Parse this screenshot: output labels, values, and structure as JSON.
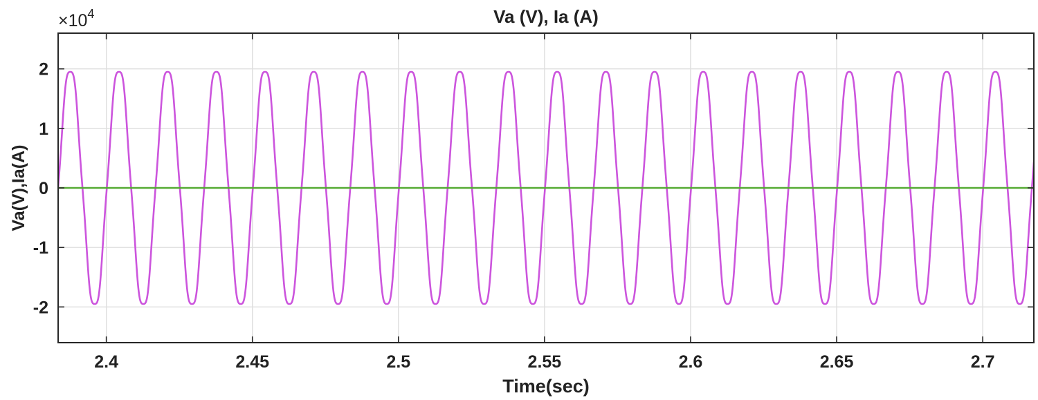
{
  "chart_data": {
    "type": "line",
    "title": "Va (V), Ia (A)",
    "xlabel": "Time(sec)",
    "ylabel": "Va(V),Ia(A)",
    "y_multiplier_base": "×10",
    "y_multiplier_exp": "4",
    "xlim": [
      2.3835,
      2.7175
    ],
    "ylim": [
      -2.6,
      2.6
    ],
    "grid": true,
    "x_ticks": [
      2.4,
      2.45,
      2.5,
      2.55,
      2.6,
      2.65,
      2.7
    ],
    "x_tick_labels": [
      "2.4",
      "2.45",
      "2.5",
      "2.55",
      "2.6",
      "2.65",
      "2.7"
    ],
    "y_ticks": [
      -2,
      -1,
      0,
      1,
      2
    ],
    "y_tick_labels": [
      "-2",
      "-1",
      "0",
      "1",
      "2"
    ],
    "series": [
      {
        "name": "Va",
        "color": "#cc55dd",
        "kind": "sine",
        "amplitude": 2.02,
        "frequency_hz": 60,
        "phase_ref_time": 2.3835,
        "ripple_amplitude": 0.07
      },
      {
        "name": "Ia",
        "color": "#55aa33",
        "kind": "constant",
        "value": 0
      }
    ]
  }
}
